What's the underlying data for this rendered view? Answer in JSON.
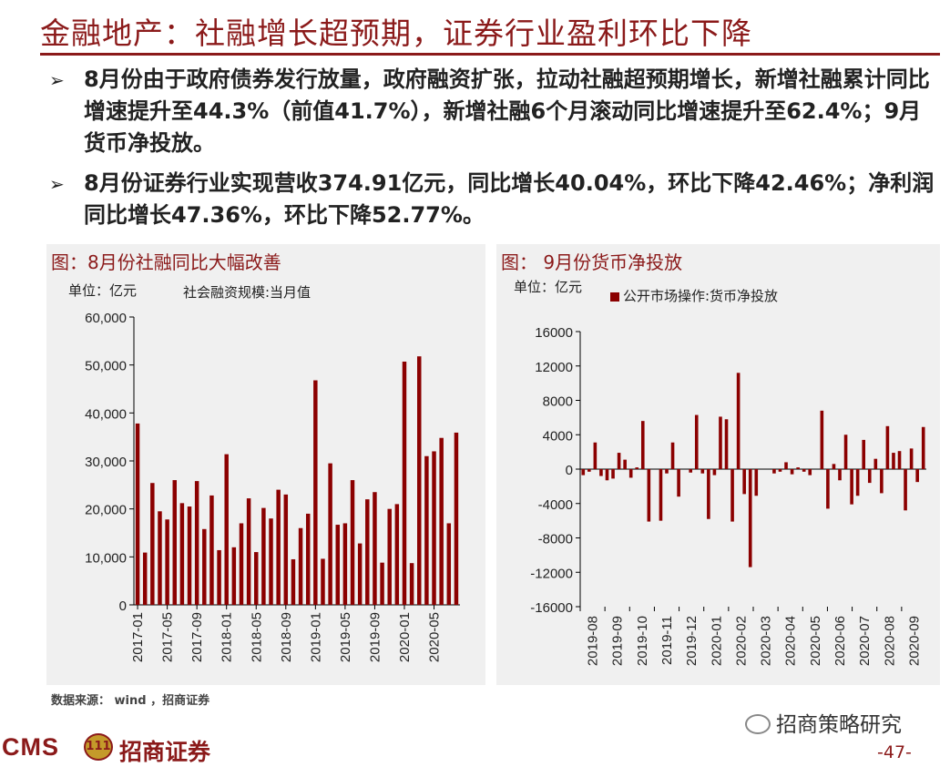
{
  "header": {
    "title": "金融地产：社融增长超预期，证券行业盈利环比下降"
  },
  "bullets": [
    {
      "marker": "➢",
      "text": "8月份由于政府债券发行放量，政府融资扩张，拉动社融超预期增长，新增社融累计同比增速提升至44.3%（前值41.7%），新增社融6个月滚动同比增速提升至62.4%；9月货币净投放。"
    },
    {
      "marker": "➢",
      "text": "8月份证券行业实现营收374.91亿元，同比增长40.04%，环比下降42.46%；净利润同比增长47.36%，环比下降52.77%。"
    }
  ],
  "left_panel": {
    "title": "图：8月份社融同比大幅改善",
    "unit": "单位：亿元",
    "legend": "社会融资规模:当月值"
  },
  "right_panel": {
    "title": "图： 9月份货币净投放",
    "unit": "单位：亿元",
    "legend": "公开市场操作:货币净投放"
  },
  "footer": {
    "source": "数据来源： wind ，招商证券",
    "brand_latin": "CMS",
    "brand_mark": "111",
    "brand_name": "招商证券",
    "wechat": "招商策略研究",
    "page": "-47-"
  },
  "colors": {
    "accent": "#8B1A1A",
    "bar": "#8B0000",
    "panel_bg": "#f0f0f0"
  },
  "chart_data": [
    {
      "type": "bar",
      "title": "图：8月份社融同比大幅改善",
      "ylabel": "单位：亿元",
      "ylim": [
        0,
        60000
      ],
      "yticks": [
        "0",
        "10,000",
        "20,000",
        "30,000",
        "40,000",
        "50,000",
        "60,000"
      ],
      "tick_labels": [
        "2017-01",
        "2017-05",
        "2017-09",
        "2018-01",
        "2018-05",
        "2018-09",
        "2019-01",
        "2019-05",
        "2019-09",
        "2020-01",
        "2020-05"
      ],
      "tick_every": 4,
      "categories": [
        "2017-01",
        "2017-02",
        "2017-03",
        "2017-04",
        "2017-05",
        "2017-06",
        "2017-07",
        "2017-08",
        "2017-09",
        "2017-10",
        "2017-11",
        "2017-12",
        "2018-01",
        "2018-02",
        "2018-03",
        "2018-04",
        "2018-05",
        "2018-06",
        "2018-07",
        "2018-08",
        "2018-09",
        "2018-10",
        "2018-11",
        "2018-12",
        "2019-01",
        "2019-02",
        "2019-03",
        "2019-04",
        "2019-05",
        "2019-06",
        "2019-07",
        "2019-08",
        "2019-09",
        "2019-10",
        "2019-11",
        "2019-12",
        "2020-01",
        "2020-02",
        "2020-03",
        "2020-04",
        "2020-05",
        "2020-06",
        "2020-07",
        "2020-08"
      ],
      "series": [
        {
          "name": "社会融资规模:当月值",
          "values": [
            37800,
            10900,
            25400,
            19500,
            17800,
            26000,
            21200,
            20500,
            25800,
            15800,
            22800,
            11400,
            31400,
            12000,
            17000,
            22200,
            11000,
            20200,
            18000,
            24000,
            23000,
            9500,
            16000,
            19000,
            46800,
            9600,
            29500,
            16700,
            17000,
            26000,
            12800,
            22000,
            23500,
            8800,
            20000,
            21000,
            50700,
            8700,
            51800,
            31000,
            32000,
            34800,
            17000,
            35900
          ]
        }
      ]
    },
    {
      "type": "bar",
      "title": "图： 9月份货币净投放",
      "ylabel": "单位：亿元",
      "ylim": [
        -16000,
        16000
      ],
      "yticks": [
        "-16000",
        "-12000",
        "-8000",
        "-4000",
        "0",
        "4000",
        "8000",
        "12000",
        "16000"
      ],
      "tick_labels": [
        "2019-08",
        "2019-09",
        "2019-10",
        "2019-11",
        "2019-12",
        "2020-01",
        "2020-02",
        "2020-03",
        "2020-04",
        "2020-05",
        "2020-06",
        "2020-07",
        "2020-08",
        "2020-09"
      ],
      "series": [
        {
          "name": "公开市场操作:货币净投放",
          "values": [
            -700,
            -300,
            3100,
            -800,
            -1300,
            -1100,
            1900,
            1100,
            -1000,
            200,
            5600,
            -6100,
            0,
            -6000,
            -500,
            3100,
            -3200,
            0,
            -400,
            6300,
            -500,
            -5800,
            -700,
            6100,
            5800,
            -6100,
            11200,
            -2900,
            -11400,
            -3100,
            0,
            0,
            -500,
            -300,
            800,
            -600,
            200,
            -300,
            -700,
            0,
            6800,
            -4600,
            600,
            -1300,
            4000,
            -4100,
            -3100,
            3400,
            -1600,
            1200,
            -2800,
            5000,
            1900,
            2100,
            -4800,
            2400,
            -1500,
            4900
          ]
        }
      ]
    }
  ]
}
